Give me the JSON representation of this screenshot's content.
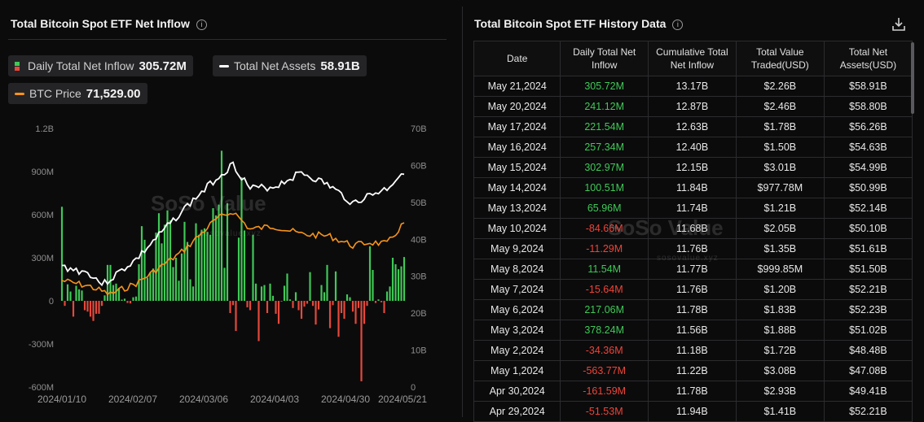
{
  "left": {
    "title": "Total Bitcoin Spot ETF Net Inflow",
    "legend": {
      "inflow_label": "Daily Total Net Inflow",
      "inflow_value": "305.72M",
      "assets_label": "Total Net Assets",
      "assets_value": "58.91B",
      "price_label": "BTC Price",
      "price_value": "71,529.00"
    },
    "watermark": "SoSo Value",
    "watermark_sub": "sosovalue.xyz"
  },
  "right": {
    "title": "Total Bitcoin Spot ETF History Data",
    "columns": [
      "Date",
      "Daily Total Net Inflow",
      "Cumulative Total Net Inflow",
      "Total Value Traded(USD)",
      "Total Net Assets(USD)"
    ],
    "rows": [
      [
        "May 21,2024",
        "305.72M",
        "13.17B",
        "$2.26B",
        "$58.91B"
      ],
      [
        "May 20,2024",
        "241.12M",
        "12.87B",
        "$2.46B",
        "$58.80B"
      ],
      [
        "May 17,2024",
        "221.54M",
        "12.63B",
        "$1.78B",
        "$56.26B"
      ],
      [
        "May 16,2024",
        "257.34M",
        "12.40B",
        "$1.50B",
        "$54.63B"
      ],
      [
        "May 15,2024",
        "302.97M",
        "12.15B",
        "$3.01B",
        "$54.99B"
      ],
      [
        "May 14,2024",
        "100.51M",
        "11.84B",
        "$977.78M",
        "$50.99B"
      ],
      [
        "May 13,2024",
        "65.96M",
        "11.74B",
        "$1.21B",
        "$52.14B"
      ],
      [
        "May 10,2024",
        "-84.66M",
        "11.68B",
        "$2.05B",
        "$50.10B"
      ],
      [
        "May 9,2024",
        "-11.29M",
        "11.76B",
        "$1.35B",
        "$51.61B"
      ],
      [
        "May 8,2024",
        "11.54M",
        "11.77B",
        "$999.85M",
        "$51.50B"
      ],
      [
        "May 7,2024",
        "-15.64M",
        "11.76B",
        "$1.20B",
        "$52.21B"
      ],
      [
        "May 6,2024",
        "217.06M",
        "11.78B",
        "$1.83B",
        "$52.23B"
      ],
      [
        "May 3,2024",
        "378.24M",
        "11.56B",
        "$1.88B",
        "$51.02B"
      ],
      [
        "May 2,2024",
        "-34.36M",
        "11.18B",
        "$1.72B",
        "$48.48B"
      ],
      [
        "May 1,2024",
        "-563.77M",
        "11.22B",
        "$3.08B",
        "$47.08B"
      ],
      [
        "Apr 30,2024",
        "-161.59M",
        "11.78B",
        "$2.93B",
        "$49.41B"
      ],
      [
        "Apr 29,2024",
        "-51.53M",
        "11.94B",
        "$1.41B",
        "$52.21B"
      ]
    ],
    "watermark": "SoSo Value",
    "watermark_sub": "sosovalue.xyz"
  },
  "colors": {
    "positive": "#3fc956",
    "negative": "#e5493b",
    "assets_line": "#ffffff",
    "price_line": "#f7931a"
  },
  "chart_data": {
    "type": "bar",
    "left_axis_ticks": [
      "1.2B",
      "900M",
      "600M",
      "300M",
      "0",
      "-300M",
      "-600M"
    ],
    "right_axis_ticks": [
      "70B",
      "60B",
      "50B",
      "40B",
      "30B",
      "20B",
      "10B",
      "0"
    ],
    "x_ticks": [
      "2024/01/10",
      "2024/02/07",
      "2024/03/06",
      "2024/04/03",
      "2024/04/30",
      "2024/05/21"
    ],
    "ylim_left": [
      -600,
      1200
    ],
    "ylim_right": [
      0,
      70
    ],
    "series": [
      {
        "name": "Daily Total Net Inflow",
        "unit": "M USD",
        "values": [
          655,
          -35,
          115,
          65,
          -110,
          105,
          80,
          72,
          -65,
          -75,
          -110,
          -140,
          -90,
          -90,
          -35,
          38,
          250,
          250,
          110,
          120,
          90,
          8,
          15,
          -15,
          -18,
          25,
          30,
          255,
          520,
          425,
          160,
          200,
          225,
          475,
          610,
          400,
          530,
          630,
          560,
          235,
          300,
          140,
          330,
          550,
          410,
          150,
          100,
          540,
          460,
          495,
          505,
          480,
          460,
          645,
          595,
          670,
          1045,
          230,
          680,
          -85,
          -30,
          -210,
          440,
          860,
          490,
          -45,
          -65,
          460,
          120,
          -280,
          100,
          110,
          -85,
          120,
          35,
          -90,
          -160,
          -5,
          105,
          190,
          10,
          -50,
          60,
          -65,
          -125,
          -40,
          -20,
          200,
          -35,
          -165,
          -60,
          110,
          60,
          250,
          -190,
          -30,
          205,
          -250,
          -85,
          -125,
          45,
          25,
          -75,
          -160,
          -50,
          -560,
          -160,
          -35,
          380,
          215,
          -15,
          10,
          -10,
          -85,
          65,
          100,
          300,
          255,
          220,
          240,
          305
        ]
      },
      {
        "name": "Total Net Assets",
        "unit": "B USD",
        "values": []
      },
      {
        "name": "BTC Price",
        "unit": "USD",
        "values": []
      }
    ]
  }
}
